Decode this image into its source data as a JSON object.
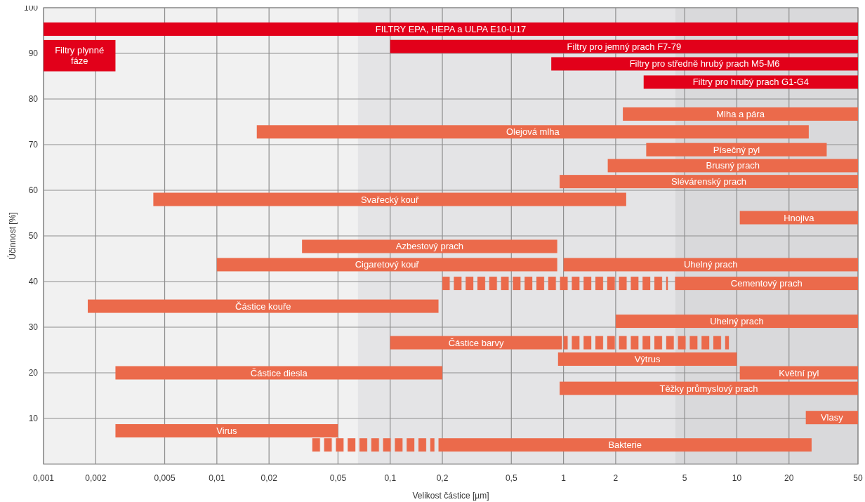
{
  "chart_data": {
    "type": "bar",
    "orientation": "horizontal",
    "log": "x",
    "xlabel": "Velikost částice [µm]",
    "ylabel": "Účinnost [%]",
    "xlim": [
      0.001,
      50
    ],
    "xticks": [
      {
        "value": 0.001,
        "label": "0,001"
      },
      {
        "value": 0.002,
        "label": "0,002"
      },
      {
        "value": 0.005,
        "label": "0,005"
      },
      {
        "value": 0.01,
        "label": "0,01"
      },
      {
        "value": 0.02,
        "label": "0,02"
      },
      {
        "value": 0.05,
        "label": "0,05"
      },
      {
        "value": 0.1,
        "label": "0,1"
      },
      {
        "value": 0.2,
        "label": "0,2"
      },
      {
        "value": 0.5,
        "label": "0,5"
      },
      1,
      2,
      5,
      10,
      20,
      50
    ],
    "ylim": [
      0,
      100
    ],
    "yticks": [
      10,
      20,
      30,
      40,
      50,
      60,
      70,
      80,
      90,
      100
    ],
    "grid": true,
    "bands": [
      {
        "axis": "x",
        "from": 0.001,
        "to": 0.065,
        "color": "#f1f1f1"
      },
      {
        "axis": "x",
        "from": 0.065,
        "to": 4.4,
        "color": "#e4e4e6"
      },
      {
        "axis": "x",
        "from": 4.4,
        "to": 50,
        "color": "#d9d9db"
      }
    ],
    "series": [
      {
        "name": "FILTRY EPA, HEPA a ULPA E10-U17",
        "color": "#e2001a",
        "x": [
          95.3
        ],
        "base": [
          0.001
        ],
        "values": [
          49.999
        ]
      },
      {
        "name": "Filtry plynné\nfáze",
        "color": "#e2001a",
        "x": [
          89.5
        ],
        "base": [
          0.001
        ],
        "values": [
          0.0016
        ]
      },
      {
        "name": "Filtry pro jemný prach F7-79",
        "color": "#e2001a",
        "x": [
          91.5
        ],
        "base": [
          0.1
        ],
        "values": [
          49.9
        ]
      },
      {
        "name": "Filtry pro středně hrubý prach M5-M6",
        "color": "#e2001a",
        "x": [
          87.7
        ],
        "base": [
          0.85
        ],
        "values": [
          49.15
        ]
      },
      {
        "name": "Filtry pro hrubý prach G1-G4",
        "color": "#e2001a",
        "x": [
          83.7
        ],
        "base": [
          2.9
        ],
        "values": [
          47.1
        ]
      },
      {
        "name": "Mlha a pára",
        "color": "#eb6a4b",
        "x": [
          76.7
        ],
        "base": [
          2.2
        ],
        "values": [
          47.8
        ]
      },
      {
        "name": "Olejová mlha",
        "color": "#eb6a4b",
        "x": [
          72.8
        ],
        "base": [
          0.017
        ],
        "values": [
          25.983
        ]
      },
      {
        "name": "Písečný pyl",
        "color": "#eb6a4b",
        "x": [
          68.9
        ],
        "base": [
          3
        ],
        "values": [
          30
        ]
      },
      {
        "name": "Brusný prach",
        "color": "#eb6a4b",
        "x": [
          65.4
        ],
        "base": [
          1.8
        ],
        "values": [
          48.2
        ]
      },
      {
        "name": "Slévárenský prach",
        "color": "#eb6a4b",
        "x": [
          61.9
        ],
        "base": [
          0.95
        ],
        "values": [
          49.05
        ]
      },
      {
        "name": "Svařecký kouř",
        "color": "#eb6a4b",
        "x": [
          58
        ],
        "base": [
          0.0043
        ],
        "values": [
          2.2957
        ]
      },
      {
        "name": "Hnojiva",
        "color": "#eb6a4b",
        "x": [
          54
        ],
        "base": [
          10.4
        ],
        "values": [
          39.6
        ]
      },
      {
        "name": "Azbestový prach",
        "color": "#eb6a4b",
        "x": [
          47.7
        ],
        "base": [
          0.031
        ],
        "values": [
          0.889
        ]
      },
      {
        "name": "Cigaretový kouř",
        "color": "#eb6a4b",
        "x": [
          43.7
        ],
        "base": [
          0.01
        ],
        "values": [
          0.91
        ]
      },
      {
        "name": "Uhelný prach",
        "color": "#eb6a4b",
        "x": [
          43.7
        ],
        "base": [
          1
        ],
        "values": [
          49
        ]
      },
      {
        "color": "#eb6a4b",
        "line_style": "dashed",
        "x": [
          39.6
        ],
        "base": [
          0.2
        ],
        "values": [
          3.8
        ]
      },
      {
        "name": "Cementový prach",
        "color": "#eb6a4b",
        "x": [
          39.6
        ],
        "base": [
          4.4
        ],
        "values": [
          45.6
        ]
      },
      {
        "name": "Částice kouře",
        "color": "#eb6a4b",
        "x": [
          34.6
        ],
        "base": [
          0.0018
        ],
        "values": [
          0.1882
        ]
      },
      {
        "name": "Uhelný prach",
        "color": "#eb6a4b",
        "x": [
          31.3
        ],
        "base": [
          2
        ],
        "values": [
          48
        ]
      },
      {
        "name": "Částice barvy",
        "color": "#eb6a4b",
        "x": [
          26.6
        ],
        "base": [
          0.1
        ],
        "values": [
          0.88
        ]
      },
      {
        "color": "#eb6a4b",
        "line_style": "dashed",
        "x": [
          26.6
        ],
        "base": [
          1
        ],
        "values": [
          8
        ]
      },
      {
        "name": "Výtrus",
        "color": "#eb6a4b",
        "x": [
          23
        ],
        "base": [
          0.93
        ],
        "values": [
          9.07
        ]
      },
      {
        "name": "Částice diesla",
        "color": "#eb6a4b",
        "x": [
          20
        ],
        "base": [
          0.0026
        ],
        "values": [
          0.1974
        ]
      },
      {
        "name": "Květní pyl",
        "color": "#eb6a4b",
        "x": [
          20
        ],
        "base": [
          10.4
        ],
        "values": [
          39.6
        ]
      },
      {
        "name": "Těžky průmyslový prach",
        "color": "#eb6a4b",
        "x": [
          16.6
        ],
        "base": [
          0.95
        ],
        "values": [
          49.05
        ]
      },
      {
        "name": "Vlasy",
        "color": "#eb6a4b",
        "x": [
          10.2
        ],
        "base": [
          25
        ],
        "values": [
          25
        ]
      },
      {
        "name": "Virus",
        "color": "#eb6a4b",
        "x": [
          7.3
        ],
        "base": [
          0.0026
        ],
        "values": [
          0.0474
        ]
      },
      {
        "color": "#eb6a4b",
        "line_style": "dashed",
        "x": [
          4.2
        ],
        "base": [
          0.035
        ],
        "values": [
          0.145
        ]
      },
      {
        "name": "Bakterie",
        "color": "#eb6a4b",
        "x": [
          4.2
        ],
        "base": [
          0.19
        ],
        "values": [
          26.81
        ]
      }
    ]
  }
}
